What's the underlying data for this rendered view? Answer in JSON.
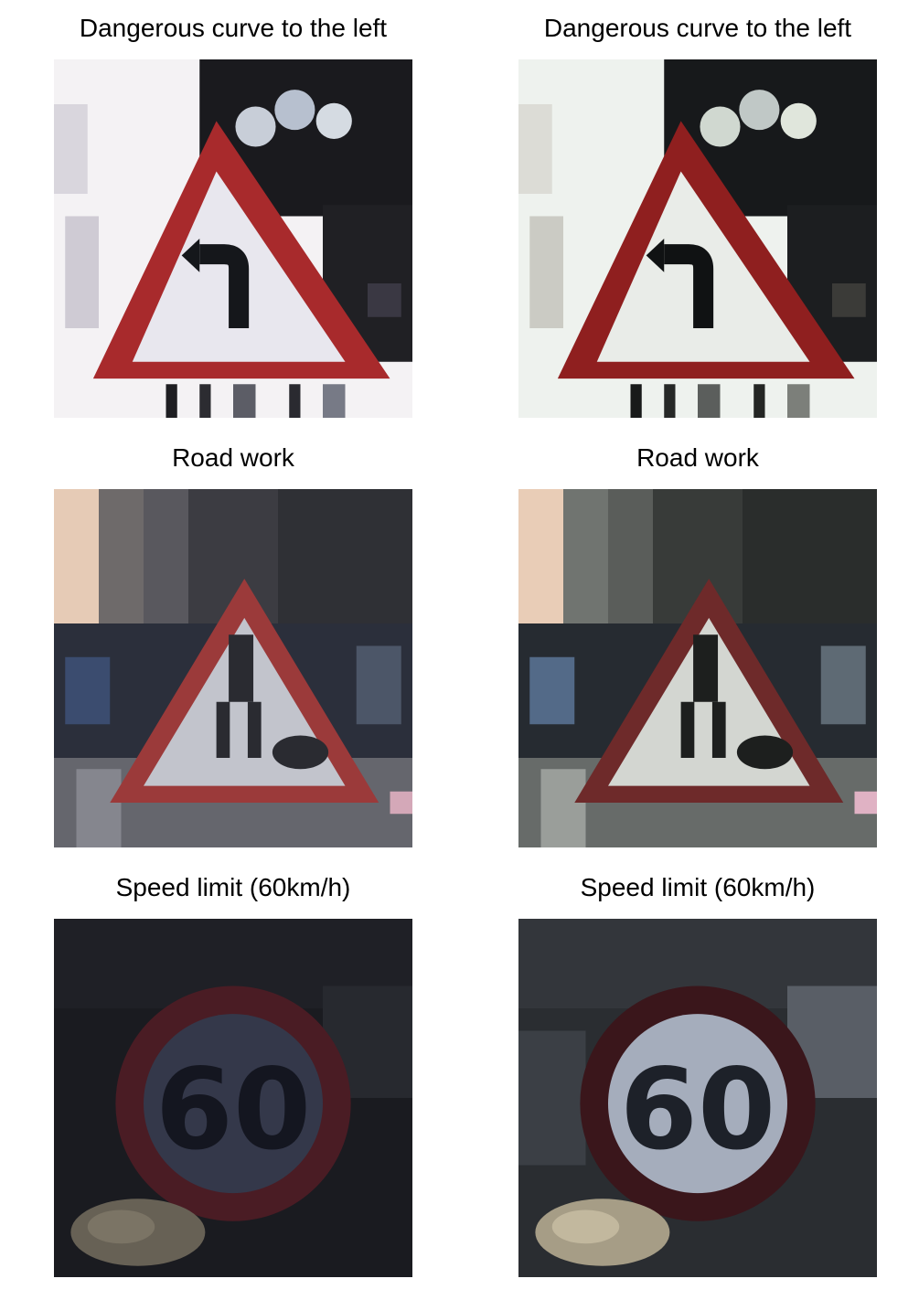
{
  "figure": {
    "rows": [
      {
        "left": {
          "title": "Dangerous curve to the left"
        },
        "right": {
          "title": "Dangerous curve to the left"
        }
      },
      {
        "left": {
          "title": "Road work"
        },
        "right": {
          "title": "Road work"
        }
      },
      {
        "left": {
          "title": "Speed limit (60km/h)"
        },
        "right": {
          "title": "Speed limit (60km/h)"
        }
      }
    ]
  }
}
